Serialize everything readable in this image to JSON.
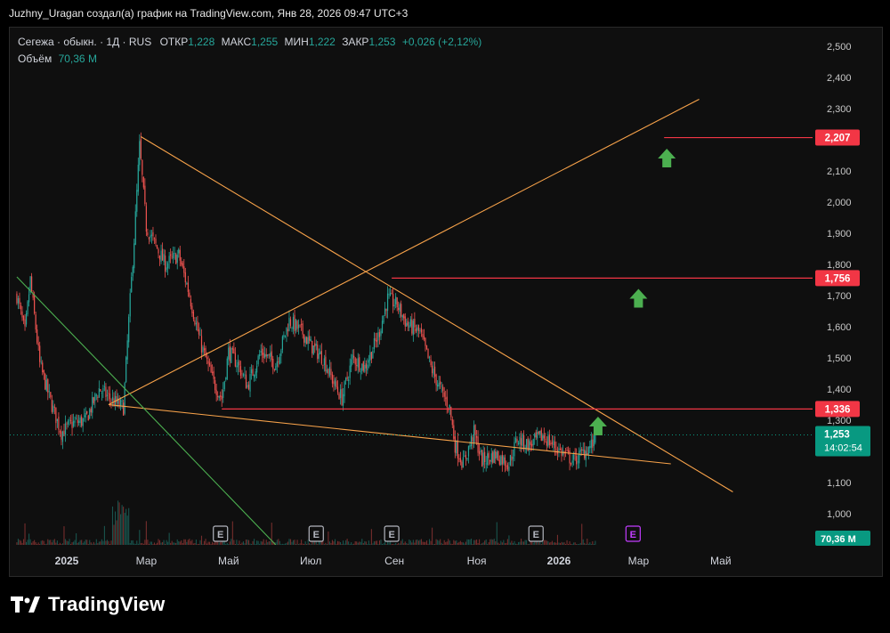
{
  "header": {
    "text": "Juzhny_Uragan создал(а) график на TradingView.com, Янв 28, 2026 09:47 UTC+3"
  },
  "legend": {
    "symbol": "Сегежа · обыкн. · 1Д · RUS",
    "open_label": "ОТКР",
    "open": "1,228",
    "high_label": "МАКС",
    "high": "1,255",
    "low_label": "МИН",
    "low": "1,222",
    "close_label": "ЗАКР",
    "close": "1,253",
    "change": "+0,026 (+2,12%)",
    "volume_label": "Объём",
    "volume": "70,36 M"
  },
  "footer": {
    "brand": "TradingView"
  },
  "colors": {
    "up": "#26a69a",
    "down": "#ef5350",
    "level": "#f23645",
    "trend_orange": "#f7a24a",
    "trend_green": "#4caf50",
    "arrow": "#4caf50",
    "accent": "#089981"
  },
  "chart_data": {
    "type": "candlestick",
    "price_axis": {
      "ticks": [
        1.0,
        1.1,
        1.2,
        1.3,
        1.4,
        1.5,
        1.6,
        1.7,
        1.8,
        1.9,
        2.0,
        2.1,
        2.2,
        2.3,
        2.4,
        2.5
      ],
      "tick_labels": [
        "1,000",
        "1,100",
        "1,200",
        "1,300",
        "1,400",
        "1,500",
        "1,600",
        "1,700",
        "1,800",
        "1,900",
        "2,000",
        "2,100",
        "2,200",
        "2,300",
        "2,400",
        "2,500"
      ]
    },
    "time_axis": {
      "labels": [
        {
          "label": "2025",
          "date": "2025-01-01",
          "bold": true
        },
        {
          "label": "Мар",
          "date": "2025-03-01"
        },
        {
          "label": "Май",
          "date": "2025-05-01"
        },
        {
          "label": "Июл",
          "date": "2025-07-01"
        },
        {
          "label": "Сен",
          "date": "2025-09-01"
        },
        {
          "label": "Ноя",
          "date": "2025-11-01"
        },
        {
          "label": "2026",
          "date": "2026-01-01",
          "bold": true
        },
        {
          "label": "Мар",
          "date": "2026-03-01"
        },
        {
          "label": "Май",
          "date": "2026-05-01"
        }
      ]
    },
    "price_path": [
      [
        "2024-11-25",
        1.7
      ],
      [
        "2024-12-01",
        1.58
      ],
      [
        "2024-12-05",
        1.75
      ],
      [
        "2024-12-12",
        1.48
      ],
      [
        "2024-12-20",
        1.36
      ],
      [
        "2024-12-28",
        1.26
      ],
      [
        "2025-01-05",
        1.29
      ],
      [
        "2025-01-15",
        1.3
      ],
      [
        "2025-01-25",
        1.4
      ],
      [
        "2025-02-05",
        1.36
      ],
      [
        "2025-02-12",
        1.34
      ],
      [
        "2025-02-16",
        1.62
      ],
      [
        "2025-02-20",
        1.88
      ],
      [
        "2025-02-24",
        2.18
      ],
      [
        "2025-03-01",
        1.92
      ],
      [
        "2025-03-08",
        1.86
      ],
      [
        "2025-03-15",
        1.8
      ],
      [
        "2025-03-25",
        1.83
      ],
      [
        "2025-04-01",
        1.72
      ],
      [
        "2025-04-10",
        1.55
      ],
      [
        "2025-04-20",
        1.42
      ],
      [
        "2025-04-26",
        1.37
      ],
      [
        "2025-05-01",
        1.52
      ],
      [
        "2025-05-08",
        1.48
      ],
      [
        "2025-05-15",
        1.41
      ],
      [
        "2025-05-25",
        1.52
      ],
      [
        "2025-06-05",
        1.48
      ],
      [
        "2025-06-15",
        1.62
      ],
      [
        "2025-06-25",
        1.58
      ],
      [
        "2025-07-01",
        1.54
      ],
      [
        "2025-07-10",
        1.5
      ],
      [
        "2025-07-18",
        1.42
      ],
      [
        "2025-07-24",
        1.37
      ],
      [
        "2025-08-01",
        1.5
      ],
      [
        "2025-08-10",
        1.47
      ],
      [
        "2025-08-20",
        1.57
      ],
      [
        "2025-08-27",
        1.69
      ],
      [
        "2025-09-03",
        1.67
      ],
      [
        "2025-09-10",
        1.61
      ],
      [
        "2025-09-20",
        1.58
      ],
      [
        "2025-09-28",
        1.47
      ],
      [
        "2025-10-05",
        1.4
      ],
      [
        "2025-10-12",
        1.34
      ],
      [
        "2025-10-16",
        1.22
      ],
      [
        "2025-10-22",
        1.16
      ],
      [
        "2025-10-30",
        1.26
      ],
      [
        "2025-11-05",
        1.17
      ],
      [
        "2025-11-15",
        1.19
      ],
      [
        "2025-11-25",
        1.16
      ],
      [
        "2025-12-01",
        1.24
      ],
      [
        "2025-12-10",
        1.22
      ],
      [
        "2025-12-20",
        1.25
      ],
      [
        "2025-12-28",
        1.22
      ],
      [
        "2026-01-05",
        1.19
      ],
      [
        "2026-01-12",
        1.17
      ],
      [
        "2026-01-20",
        1.2
      ],
      [
        "2026-01-27",
        1.228
      ],
      [
        "2026-01-28",
        1.253
      ]
    ],
    "horizontal_levels": [
      {
        "price": 1.336,
        "label": "1,336",
        "from_date": "2025-04-26"
      },
      {
        "price": 1.756,
        "label": "1,756",
        "from_date": "2025-08-30"
      },
      {
        "price": 2.207,
        "label": "2,207",
        "from_date": "2026-03-20"
      }
    ],
    "current_price": {
      "price": 1.253,
      "label": "1,253",
      "countdown": "14:02:54"
    },
    "volume_label": "70,36 M",
    "trend_lines": [
      {
        "color": "orange",
        "from": [
          "2025-02-25",
          2.21
        ],
        "to": [
          "2026-05-10",
          1.07
        ]
      },
      {
        "color": "orange",
        "from": [
          "2025-02-01",
          1.35
        ],
        "to": [
          "2026-04-15",
          2.33
        ]
      },
      {
        "color": "orange",
        "from": [
          "2025-02-01",
          1.35
        ],
        "to": [
          "2026-03-25",
          1.16
        ]
      },
      {
        "color": "green",
        "from": [
          "2024-11-25",
          1.76
        ],
        "to": [
          "2025-06-05",
          0.9
        ]
      }
    ],
    "arrows": [
      {
        "date": "2026-03-22",
        "price": 2.14
      },
      {
        "date": "2026-03-01",
        "price": 1.69
      },
      {
        "date": "2026-01-30",
        "price": 1.28
      }
    ],
    "event_markers": [
      {
        "date": "2025-04-25",
        "label": "E"
      },
      {
        "date": "2025-07-05",
        "label": "E"
      },
      {
        "date": "2025-08-30",
        "label": "E"
      },
      {
        "date": "2025-12-15",
        "label": "E"
      },
      {
        "date": "2026-02-25",
        "label": "E",
        "future": true
      }
    ]
  }
}
